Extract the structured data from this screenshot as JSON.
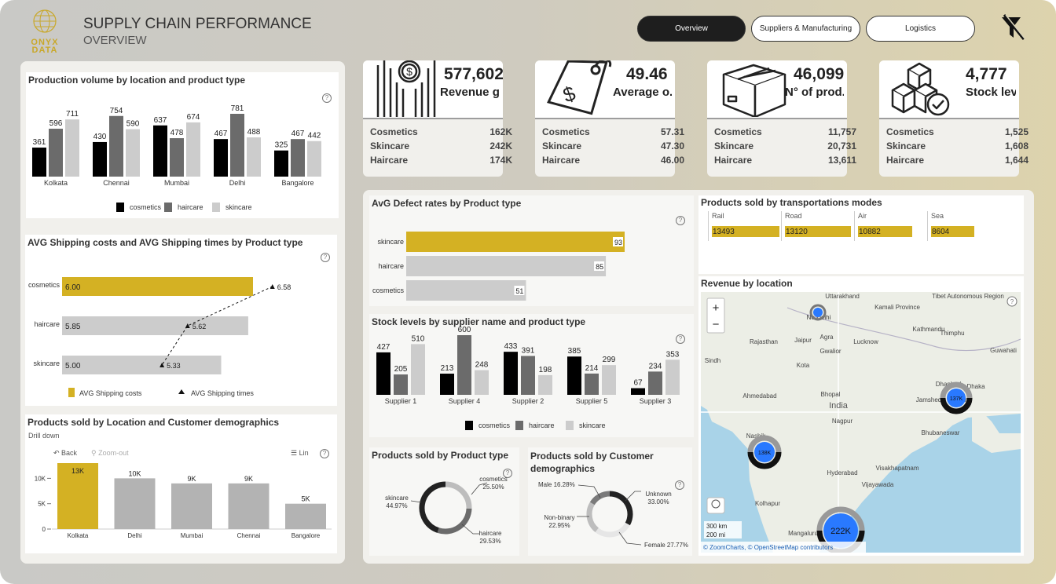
{
  "header": {
    "logo_line1": "ONYX",
    "logo_line2": "DATA",
    "title": "SUPPLY CHAIN PERFORMANCE",
    "subtitle": "OVERVIEW"
  },
  "tabs": [
    {
      "label": "Overview",
      "active": true
    },
    {
      "label": "Suppliers & Manufacturing",
      "active": false
    },
    {
      "label": "Logistics",
      "active": false
    }
  ],
  "filter_icon": "filter-off-icon",
  "colors": {
    "gold": "#d4b123",
    "black": "#000000",
    "dark_gray": "#6b6b6b",
    "light_gray": "#cccccc"
  },
  "kpis": [
    {
      "icon": "revenue-bars-icon",
      "value": "577,602",
      "label": "Revenue g...",
      "rows": [
        {
          "name": "Cosmetics",
          "value": "162K"
        },
        {
          "name": "Skincare",
          "value": "242K"
        },
        {
          "name": "Haircare",
          "value": "174K"
        }
      ]
    },
    {
      "icon": "price-tag-icon",
      "value": "49.46",
      "label": "Average o...",
      "rows": [
        {
          "name": "Cosmetics",
          "value": "57.31"
        },
        {
          "name": "Skincare",
          "value": "47.30"
        },
        {
          "name": "Haircare",
          "value": "46.00"
        }
      ]
    },
    {
      "icon": "box-icon",
      "value": "46,099",
      "label": "N° of prod...",
      "rows": [
        {
          "name": "Cosmetics",
          "value": "11,757"
        },
        {
          "name": "Skincare",
          "value": "20,731"
        },
        {
          "name": "Haircare",
          "value": "13,611"
        }
      ]
    },
    {
      "icon": "stock-boxes-icon",
      "value": "4,777",
      "label": "Stock level",
      "rows": [
        {
          "name": "Cosmetics",
          "value": "1,525"
        },
        {
          "name": "Skincare",
          "value": "1,608"
        },
        {
          "name": "Haircare",
          "value": "1,644"
        }
      ]
    }
  ],
  "chart_data": [
    {
      "id": "production",
      "type": "bar",
      "title": "Production volume by location and product type",
      "categories": [
        "Kolkata",
        "Chennai",
        "Mumbai",
        "Delhi",
        "Bangalore"
      ],
      "series": [
        {
          "name": "cosmetics",
          "values": [
            361,
            430,
            637,
            467,
            325
          ]
        },
        {
          "name": "haircare",
          "values": [
            596,
            754,
            478,
            781,
            467
          ]
        },
        {
          "name": "skincare",
          "values": [
            711,
            590,
            674,
            488,
            442
          ]
        }
      ]
    },
    {
      "id": "shipping",
      "type": "bar",
      "title": "AVG Shipping costs and AVG Shipping times by Product type",
      "categories": [
        "cosmetics",
        "haircare",
        "skincare"
      ],
      "series": [
        {
          "name": "AVG Shipping costs",
          "values": [
            6.0,
            5.85,
            5.0
          ],
          "labels": [
            "6.00",
            "5.85",
            "5.00"
          ]
        },
        {
          "name": "AVG Shipping times",
          "values": [
            6.58,
            5.62,
            5.33
          ]
        }
      ]
    },
    {
      "id": "demographics_location",
      "type": "bar",
      "title": "Products sold by Location and Customer demographics",
      "subtitle": "Drill down",
      "controls": [
        "Back",
        "Zoom-out",
        "Lin"
      ],
      "categories": [
        "Kolkata",
        "Delhi",
        "Mumbai",
        "Chennai",
        "Bangalore"
      ],
      "values": [
        13000,
        10000,
        9000,
        9000,
        5000
      ],
      "labels": [
        "13K",
        "10K",
        "9K",
        "9K",
        "5K"
      ],
      "yticks": [
        "10K",
        "5K",
        "0"
      ],
      "ylim": [
        0,
        13000
      ]
    },
    {
      "id": "defects",
      "type": "bar",
      "title": "AvG Defect rates by Product type",
      "categories": [
        "skincare",
        "haircare",
        "cosmetics"
      ],
      "values": [
        93,
        85,
        51
      ]
    },
    {
      "id": "stock",
      "type": "bar",
      "title": "Stock levels by supplier name and product type",
      "categories": [
        "Supplier 1",
        "Supplier 4",
        "Supplier 2",
        "Supplier 5",
        "Supplier 3"
      ],
      "series": [
        {
          "name": "cosmetics",
          "values": [
            427,
            213,
            433,
            385,
            67
          ]
        },
        {
          "name": "haircare",
          "values": [
            205,
            600,
            391,
            214,
            234
          ]
        },
        {
          "name": "skincare",
          "values": [
            510,
            248,
            198,
            299,
            353
          ]
        }
      ]
    },
    {
      "id": "transport",
      "type": "bar",
      "title": "Products sold by transportations modes",
      "categories": [
        "Rail",
        "Road",
        "Air",
        "Sea"
      ],
      "values": [
        13493,
        13120,
        10882,
        8604
      ]
    },
    {
      "id": "product_type",
      "type": "pie",
      "title": "Products sold by Product type",
      "slices": [
        {
          "name": "cosmetics",
          "pct": "25.50%",
          "value": 25.5
        },
        {
          "name": "haircare",
          "pct": "29.53%",
          "value": 29.53
        },
        {
          "name": "skincare",
          "pct": "44.97%",
          "value": 44.97
        }
      ]
    },
    {
      "id": "demographics",
      "type": "pie",
      "title": "Products sold by Customer demographics",
      "slices": [
        {
          "name": "Unknown",
          "pct": "33.00%",
          "value": 33.0
        },
        {
          "name": "Female",
          "pct": "27.77%",
          "value": 27.77
        },
        {
          "name": "Non-binary",
          "pct": "22.95%",
          "value": 22.95
        },
        {
          "name": "Male",
          "pct": "16.28%",
          "value": 16.28
        }
      ]
    }
  ],
  "map": {
    "title": "Revenue by location",
    "cities": [
      "Uttarakhand",
      "Kamali Province",
      "Tibet Autonomous Region",
      "Kathmandu",
      "Thimphu",
      "Rajasthan",
      "Jaipur",
      "Agra",
      "Lucknow",
      "Gwalior",
      "Sindh",
      "Kota",
      "Guwahati",
      "Ahmedabad",
      "Bhopal",
      "India",
      "Dhanbad",
      "Dhaka",
      "Jamshed",
      "hulna",
      "Nagpur",
      "Nashik",
      "Bhubaneswar",
      "Kolhapur",
      "Hyderabad",
      "Visakhapatnam",
      "Vijayawada",
      "Mangaluru"
    ],
    "labels": [
      "Ne Delhi"
    ],
    "bubbles": [
      "137K",
      "138K",
      "222K"
    ],
    "scale": [
      "300 km",
      "200 mi"
    ],
    "attribution": "© ZoomCharts, © OpenStreetMap contributors",
    "zoom_in": "+",
    "zoom_out": "−"
  }
}
